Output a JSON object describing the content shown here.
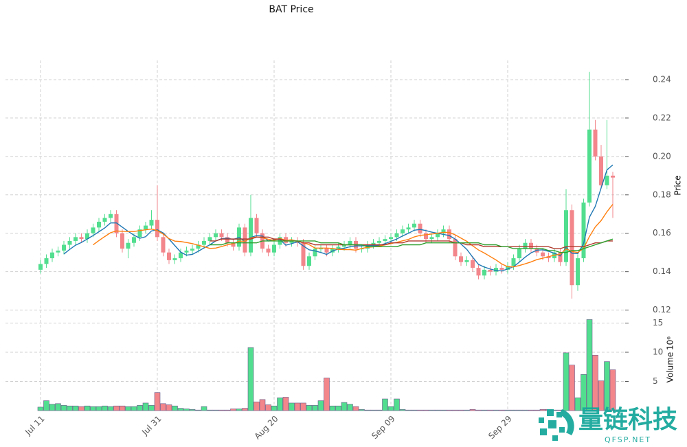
{
  "chart_data": {
    "type": "candlestick",
    "title": "BAT Price",
    "ylabel": "Price",
    "y2label": "Volume",
    "y2_multiplier": "10⁶",
    "watermark": {
      "title": "量链科技",
      "subtitle": "QFSP.NET"
    },
    "up_color": "#52de8f",
    "down_color": "#f2868b",
    "grid": true,
    "x": [
      "Jul 11",
      "Jul 12",
      "Jul 13",
      "Jul 14",
      "Jul 15",
      "Jul 16",
      "Jul 17",
      "Jul 18",
      "Jul 19",
      "Jul 20",
      "Jul 21",
      "Jul 22",
      "Jul 23",
      "Jul 24",
      "Jul 25",
      "Jul 26",
      "Jul 27",
      "Jul 28",
      "Jul 29",
      "Jul 30",
      "Jul 31",
      "Aug 01",
      "Aug 02",
      "Aug 03",
      "Aug 04",
      "Aug 05",
      "Aug 06",
      "Aug 07",
      "Aug 08",
      "Aug 09",
      "Aug 10",
      "Aug 11",
      "Aug 12",
      "Aug 13",
      "Aug 14",
      "Aug 15",
      "Aug 16",
      "Aug 17",
      "Aug 18",
      "Aug 19",
      "Aug 20",
      "Aug 21",
      "Aug 22",
      "Aug 23",
      "Aug 24",
      "Aug 25",
      "Aug 26",
      "Aug 27",
      "Aug 28",
      "Aug 29",
      "Aug 30",
      "Aug 31",
      "Sep 01",
      "Sep 02",
      "Sep 03",
      "Sep 04",
      "Sep 05",
      "Sep 06",
      "Sep 07",
      "Sep 08",
      "Sep 09",
      "Sep 10",
      "Sep 11",
      "Sep 12",
      "Sep 13",
      "Sep 14",
      "Sep 15",
      "Sep 16",
      "Sep 17",
      "Sep 18",
      "Sep 19",
      "Sep 20",
      "Sep 21",
      "Sep 22",
      "Sep 23",
      "Sep 24",
      "Sep 25",
      "Sep 26",
      "Sep 27",
      "Sep 28",
      "Sep 29",
      "Sep 30",
      "Oct 01",
      "Oct 02",
      "Oct 03",
      "Oct 04",
      "Oct 05",
      "Oct 06",
      "Oct 07",
      "Oct 08",
      "Oct 09",
      "Oct 10",
      "Oct 11",
      "Oct 12",
      "Oct 13",
      "Oct 14",
      "Oct 15",
      "Oct 16",
      "Oct 17"
    ],
    "xticks": [
      "Jul 11",
      "Jul 31",
      "Aug 20",
      "Sep 09",
      "Sep 29"
    ],
    "open": [
      0.141,
      0.144,
      0.147,
      0.15,
      0.151,
      0.154,
      0.156,
      0.158,
      0.157,
      0.16,
      0.163,
      0.166,
      0.168,
      0.17,
      0.16,
      0.152,
      0.155,
      0.158,
      0.162,
      0.164,
      0.167,
      0.158,
      0.15,
      0.146,
      0.147,
      0.15,
      0.151,
      0.152,
      0.154,
      0.156,
      0.158,
      0.16,
      0.158,
      0.155,
      0.153,
      0.163,
      0.15,
      0.168,
      0.16,
      0.152,
      0.15,
      0.154,
      0.158,
      0.155,
      0.156,
      0.155,
      0.143,
      0.148,
      0.152,
      0.152,
      0.15,
      0.152,
      0.153,
      0.154,
      0.156,
      0.152,
      0.152,
      0.154,
      0.155,
      0.156,
      0.157,
      0.158,
      0.16,
      0.162,
      0.163,
      0.165,
      0.16,
      0.157,
      0.158,
      0.16,
      0.162,
      0.157,
      0.148,
      0.145,
      0.146,
      0.142,
      0.138,
      0.141,
      0.14,
      0.142,
      0.141,
      0.143,
      0.147,
      0.152,
      0.155,
      0.152,
      0.15,
      0.148,
      0.147,
      0.15,
      0.145,
      0.172,
      0.133,
      0.147,
      0.176,
      0.214,
      0.2,
      0.185,
      0.19
    ],
    "high": [
      0.146,
      0.149,
      0.152,
      0.153,
      0.156,
      0.158,
      0.16,
      0.16,
      0.162,
      0.165,
      0.168,
      0.17,
      0.172,
      0.172,
      0.162,
      0.157,
      0.16,
      0.164,
      0.166,
      0.172,
      0.185,
      0.16,
      0.152,
      0.149,
      0.152,
      0.153,
      0.154,
      0.156,
      0.158,
      0.16,
      0.162,
      0.162,
      0.16,
      0.157,
      0.165,
      0.165,
      0.18,
      0.17,
      0.162,
      0.154,
      0.156,
      0.16,
      0.16,
      0.158,
      0.158,
      0.157,
      0.15,
      0.154,
      0.154,
      0.154,
      0.154,
      0.155,
      0.156,
      0.158,
      0.158,
      0.154,
      0.156,
      0.157,
      0.158,
      0.159,
      0.16,
      0.162,
      0.164,
      0.165,
      0.167,
      0.167,
      0.162,
      0.16,
      0.162,
      0.164,
      0.164,
      0.159,
      0.15,
      0.148,
      0.148,
      0.144,
      0.143,
      0.143,
      0.144,
      0.144,
      0.145,
      0.149,
      0.154,
      0.157,
      0.157,
      0.154,
      0.152,
      0.15,
      0.152,
      0.152,
      0.183,
      0.175,
      0.149,
      0.178,
      0.244,
      0.219,
      0.206,
      0.219,
      0.192
    ],
    "low": [
      0.139,
      0.142,
      0.145,
      0.148,
      0.149,
      0.152,
      0.154,
      0.155,
      0.155,
      0.158,
      0.161,
      0.164,
      0.166,
      0.158,
      0.15,
      0.147,
      0.153,
      0.156,
      0.16,
      0.162,
      0.156,
      0.148,
      0.144,
      0.144,
      0.145,
      0.148,
      0.149,
      0.15,
      0.152,
      0.154,
      0.156,
      0.156,
      0.153,
      0.151,
      0.151,
      0.148,
      0.148,
      0.158,
      0.15,
      0.148,
      0.148,
      0.152,
      0.153,
      0.153,
      0.153,
      0.141,
      0.141,
      0.146,
      0.15,
      0.148,
      0.148,
      0.15,
      0.151,
      0.152,
      0.15,
      0.15,
      0.15,
      0.152,
      0.153,
      0.154,
      0.155,
      0.156,
      0.158,
      0.16,
      0.161,
      0.158,
      0.155,
      0.155,
      0.156,
      0.158,
      0.155,
      0.146,
      0.143,
      0.143,
      0.14,
      0.136,
      0.136,
      0.138,
      0.138,
      0.139,
      0.139,
      0.141,
      0.145,
      0.15,
      0.15,
      0.148,
      0.146,
      0.145,
      0.145,
      0.143,
      0.143,
      0.126,
      0.13,
      0.145,
      0.174,
      0.198,
      0.183,
      0.183,
      0.168
    ],
    "close": [
      0.144,
      0.147,
      0.15,
      0.151,
      0.154,
      0.156,
      0.158,
      0.157,
      0.16,
      0.163,
      0.166,
      0.168,
      0.17,
      0.16,
      0.152,
      0.155,
      0.158,
      0.162,
      0.164,
      0.167,
      0.158,
      0.15,
      0.146,
      0.147,
      0.15,
      0.151,
      0.152,
      0.154,
      0.156,
      0.158,
      0.16,
      0.158,
      0.155,
      0.153,
      0.163,
      0.15,
      0.168,
      0.16,
      0.152,
      0.15,
      0.154,
      0.158,
      0.155,
      0.156,
      0.155,
      0.143,
      0.148,
      0.152,
      0.152,
      0.15,
      0.152,
      0.153,
      0.154,
      0.156,
      0.152,
      0.152,
      0.154,
      0.155,
      0.156,
      0.157,
      0.158,
      0.16,
      0.162,
      0.163,
      0.165,
      0.16,
      0.157,
      0.158,
      0.16,
      0.162,
      0.157,
      0.148,
      0.145,
      0.146,
      0.142,
      0.138,
      0.141,
      0.14,
      0.142,
      0.141,
      0.143,
      0.147,
      0.152,
      0.155,
      0.152,
      0.15,
      0.148,
      0.147,
      0.15,
      0.145,
      0.172,
      0.133,
      0.147,
      0.176,
      0.214,
      0.2,
      0.185,
      0.19,
      0.189
    ],
    "volume": [
      0.6,
      1.7,
      1.1,
      1.2,
      0.9,
      0.8,
      0.8,
      0.7,
      0.8,
      0.7,
      0.7,
      0.8,
      0.7,
      0.8,
      0.8,
      0.7,
      0.7,
      0.9,
      1.3,
      0.9,
      3.1,
      1.2,
      1.0,
      0.8,
      0.4,
      0.3,
      0.2,
      0.1,
      0.7,
      0.1,
      0.1,
      0.1,
      0.1,
      0.3,
      0.3,
      0.4,
      10.8,
      1.5,
      1.9,
      1.0,
      0.8,
      2.2,
      2.3,
      1.3,
      1.3,
      1.3,
      0.9,
      0.9,
      1.7,
      5.6,
      0.8,
      0.8,
      1.4,
      1.1,
      0.7,
      0.2,
      0.1,
      0.1,
      0.1,
      2.0,
      0.7,
      2.0,
      0.2,
      0.1,
      0.1,
      0.1,
      0.1,
      0.1,
      0.1,
      0.1,
      0.1,
      0.1,
      0.1,
      0.1,
      0.2,
      0.1,
      0.1,
      0.1,
      0.1,
      0.1,
      0.1,
      0.1,
      0.1,
      0.1,
      0.1,
      0.1,
      0.2,
      0.2,
      0.1,
      0.1,
      9.9,
      7.8,
      2.2,
      6.2,
      15.6,
      9.5,
      5.1,
      8.4,
      7.0
    ],
    "lines": [
      {
        "color": "#1f77b4",
        "values": [
          null,
          null,
          null,
          null,
          0.1492,
          0.1516,
          0.1538,
          0.1552,
          0.157,
          0.1588,
          0.1608,
          0.1628,
          0.1654,
          0.1654,
          0.1632,
          0.161,
          0.159,
          0.1574,
          0.1582,
          0.1612,
          0.1618,
          0.1602,
          0.157,
          0.1536,
          0.1502,
          0.1486,
          0.149,
          0.1506,
          0.1524,
          0.154,
          0.156,
          0.1572,
          0.1574,
          0.1568,
          0.1578,
          0.1558,
          0.1578,
          0.1588,
          0.1586,
          0.156,
          0.1568,
          0.1568,
          0.1538,
          0.1546,
          0.1556,
          0.1534,
          0.1514,
          0.1508,
          0.15,
          0.149,
          0.1508,
          0.1518,
          0.1522,
          0.153,
          0.1534,
          0.1534,
          0.1536,
          0.1536,
          0.1536,
          0.1546,
          0.1558,
          0.157,
          0.1586,
          0.16,
          0.1616,
          0.162,
          0.1614,
          0.1606,
          0.16,
          0.1594,
          0.1588,
          0.157,
          0.1544,
          0.1516,
          0.1476,
          0.1438,
          0.1424,
          0.1414,
          0.1406,
          0.1404,
          0.1414,
          0.1426,
          0.145,
          0.1476,
          0.1498,
          0.1512,
          0.1514,
          0.1506,
          0.1496,
          0.1482,
          0.1526,
          0.1496,
          0.1494,
          0.1546,
          0.1684,
          0.174,
          0.1836,
          0.193,
          0.1956
        ]
      },
      {
        "color": "#ff7f0e",
        "values": [
          null,
          null,
          null,
          null,
          null,
          null,
          null,
          null,
          null,
          0.154,
          0.1562,
          0.1583,
          0.1603,
          0.1612,
          0.161,
          0.1609,
          0.1609,
          0.1614,
          0.1618,
          0.1622,
          0.1614,
          0.1596,
          0.1572,
          0.1559,
          0.1557,
          0.1552,
          0.1546,
          0.1538,
          0.153,
          0.1521,
          0.1523,
          0.1531,
          0.154,
          0.1546,
          0.1559,
          0.1559,
          0.1575,
          0.1581,
          0.1577,
          0.1569,
          0.1563,
          0.1573,
          0.1563,
          0.1566,
          0.1558,
          0.1551,
          0.1541,
          0.1523,
          0.1523,
          0.1523,
          0.1521,
          0.1516,
          0.1515,
          0.1515,
          0.1512,
          0.1521,
          0.1527,
          0.1529,
          0.1533,
          0.154,
          0.1546,
          0.1553,
          0.1561,
          0.1568,
          0.1581,
          0.1589,
          0.1592,
          0.1596,
          0.16,
          0.1605,
          0.1604,
          0.1592,
          0.1575,
          0.1558,
          0.1535,
          0.1513,
          0.1497,
          0.1479,
          0.1461,
          0.144,
          0.1426,
          0.1425,
          0.1432,
          0.1441,
          0.1451,
          0.1463,
          0.147,
          0.1478,
          0.1486,
          0.149,
          0.1519,
          0.1505,
          0.15,
          0.1521,
          0.1583,
          0.1633,
          0.1666,
          0.1712,
          0.1751
        ]
      },
      {
        "color": "#b0392c",
        "values": [
          null,
          null,
          null,
          null,
          null,
          null,
          null,
          null,
          null,
          null,
          null,
          null,
          null,
          null,
          null,
          null,
          null,
          null,
          null,
          null,
          null,
          null,
          null,
          null,
          null,
          null,
          null,
          null,
          null,
          0.156,
          0.156,
          0.157,
          0.157,
          0.157,
          0.157,
          0.157,
          0.157,
          0.158,
          0.158,
          0.158,
          0.157,
          0.157,
          0.156,
          0.156,
          0.156,
          0.155,
          0.155,
          0.154,
          0.154,
          0.154,
          0.154,
          0.154,
          0.154,
          0.154,
          0.154,
          0.154,
          0.154,
          0.154,
          0.154,
          0.154,
          0.155,
          0.155,
          0.155,
          0.156,
          0.156,
          0.156,
          0.156,
          0.156,
          0.156,
          0.156,
          0.156,
          0.155,
          0.155,
          0.154,
          0.154,
          0.154,
          0.153,
          0.153,
          0.153,
          0.153,
          0.153,
          0.153,
          0.153,
          0.153,
          0.153,
          0.153,
          0.153,
          0.153,
          0.152,
          0.152,
          0.153,
          0.153,
          0.153,
          0.153,
          0.154,
          0.155,
          0.155,
          0.156,
          0.156
        ]
      },
      {
        "color": "#2ca02c",
        "values": [
          null,
          null,
          null,
          null,
          null,
          null,
          null,
          null,
          null,
          null,
          null,
          null,
          null,
          null,
          null,
          null,
          null,
          null,
          null,
          null,
          null,
          null,
          null,
          null,
          null,
          null,
          null,
          null,
          null,
          0.154,
          0.154,
          0.154,
          0.155,
          0.155,
          0.155,
          0.155,
          0.155,
          0.155,
          0.156,
          0.156,
          0.156,
          0.156,
          0.156,
          0.156,
          0.156,
          0.156,
          0.156,
          0.156,
          0.155,
          0.155,
          0.155,
          0.155,
          0.154,
          0.154,
          0.154,
          0.154,
          0.153,
          0.153,
          0.153,
          0.153,
          0.153,
          0.153,
          0.154,
          0.154,
          0.154,
          0.154,
          0.155,
          0.155,
          0.155,
          0.155,
          0.155,
          0.155,
          0.155,
          0.155,
          0.155,
          0.155,
          0.154,
          0.154,
          0.154,
          0.153,
          0.153,
          0.152,
          0.152,
          0.152,
          0.152,
          0.152,
          0.152,
          0.151,
          0.151,
          0.15,
          0.15,
          0.151,
          0.151,
          0.152,
          0.153,
          0.154,
          0.155,
          0.156,
          0.157
        ]
      }
    ],
    "ylim": [
      0.117,
      0.25
    ],
    "yticks": [
      0.12,
      0.14,
      0.16,
      0.18,
      {
        "value": 0.2,
        "label": "0.20"
      },
      0.22,
      0.24
    ],
    "y2lim": [
      0,
      16
    ],
    "y2ticks": [
      5,
      10,
      15
    ]
  }
}
